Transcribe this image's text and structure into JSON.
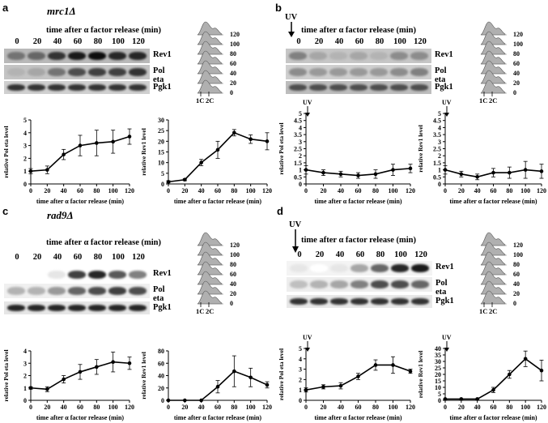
{
  "panels": {
    "a": {
      "letter": "a",
      "title": "mrc1Δ",
      "header": "time after α factor release (min)",
      "timepoints": [
        "0",
        "20",
        "40",
        "60",
        "80",
        "100",
        "120"
      ],
      "blots": [
        "Rev1",
        "Pol eta",
        "Pgk1"
      ]
    },
    "b": {
      "letter": "b",
      "uv": "UV",
      "header": "time after α factor release (min)",
      "timepoints": [
        "0",
        "20",
        "40",
        "60",
        "80",
        "100",
        "120"
      ],
      "blots": [
        "Rev1",
        "Pol eta",
        "Pgk1"
      ]
    },
    "c": {
      "letter": "c",
      "title": "rad9Δ",
      "header": "time after α factor release (min)",
      "timepoints": [
        "0",
        "20",
        "40",
        "60",
        "80",
        "100",
        "120"
      ],
      "blots": [
        "Rev1",
        "Pol eta",
        "Pgk1"
      ]
    },
    "d": {
      "letter": "d",
      "uv": "UV",
      "header": "time after α factor release (min)",
      "timepoints": [
        "0",
        "20",
        "40",
        "60",
        "80",
        "100",
        "120"
      ],
      "blots": [
        "Rev1",
        "Pol eta",
        "Pgk1"
      ]
    }
  },
  "flow": {
    "times": [
      "120",
      "100",
      "80",
      "60",
      "40",
      "20",
      "0"
    ],
    "c1": "1C",
    "c2": "2C"
  },
  "uv_label": "UV",
  "chart_data": [
    {
      "id": "a-poleta",
      "type": "line",
      "x": [
        0,
        20,
        40,
        60,
        80,
        100,
        120
      ],
      "values": [
        1,
        1.1,
        2.3,
        3,
        3.2,
        3.3,
        3.7
      ],
      "err": [
        0.2,
        0.3,
        0.4,
        0.8,
        1.0,
        0.9,
        0.6
      ],
      "xlim": [
        0,
        120
      ],
      "ylim": [
        0,
        5
      ],
      "xticks": [
        0,
        20,
        40,
        60,
        80,
        100,
        120
      ],
      "yticks": [
        0,
        1,
        2,
        3,
        4,
        5
      ],
      "xlabel": "time after α factor release (min)",
      "ylabel": "relative Pol eta level",
      "uv": false
    },
    {
      "id": "a-rev1",
      "type": "line",
      "x": [
        0,
        20,
        40,
        60,
        80,
        100,
        120
      ],
      "values": [
        1,
        2,
        10,
        16,
        24,
        21,
        20
      ],
      "err": [
        0.5,
        0.5,
        1.5,
        4,
        1.5,
        2,
        4
      ],
      "xlim": [
        0,
        120
      ],
      "ylim": [
        0,
        30
      ],
      "xticks": [
        0,
        20,
        40,
        60,
        80,
        100,
        120
      ],
      "yticks": [
        0,
        5,
        10,
        15,
        20,
        25,
        30
      ],
      "xlabel": "time after α factor release (min)",
      "ylabel": "relative Rev1 level",
      "uv": false
    },
    {
      "id": "b-poleta",
      "type": "line",
      "x": [
        0,
        20,
        40,
        60,
        80,
        100,
        120
      ],
      "values": [
        1,
        0.8,
        0.7,
        0.6,
        0.7,
        1,
        1.1
      ],
      "err": [
        0.3,
        0.2,
        0.2,
        0.2,
        0.3,
        0.4,
        0.3
      ],
      "xlim": [
        0,
        120
      ],
      "ylim": [
        0,
        5
      ],
      "xticks": [
        0,
        20,
        40,
        60,
        80,
        100,
        120
      ],
      "yticks": [
        0,
        0.5,
        1,
        1.5,
        2,
        2.5,
        3,
        3.5,
        4,
        4.5,
        5
      ],
      "xlabel": "time after α factor release (min)",
      "ylabel": "relative Pol eta level",
      "uv": true
    },
    {
      "id": "b-rev1",
      "type": "line",
      "x": [
        0,
        20,
        40,
        60,
        80,
        100,
        120
      ],
      "values": [
        1,
        0.7,
        0.5,
        0.8,
        0.8,
        1,
        0.9
      ],
      "err": [
        0.3,
        0.2,
        0.2,
        0.3,
        0.4,
        0.6,
        0.5
      ],
      "xlim": [
        0,
        120
      ],
      "ylim": [
        0,
        5
      ],
      "xticks": [
        0,
        20,
        40,
        60,
        80,
        100,
        120
      ],
      "yticks": [
        0,
        0.5,
        1,
        1.5,
        2,
        2.5,
        3,
        3.5,
        4,
        4.5,
        5
      ],
      "xlabel": "time after α factor release (min)",
      "ylabel": "relative Rev1 level",
      "uv": true
    },
    {
      "id": "c-poleta",
      "type": "line",
      "x": [
        0,
        20,
        40,
        60,
        80,
        100,
        120
      ],
      "values": [
        1,
        0.9,
        1.7,
        2.3,
        2.7,
        3.1,
        3
      ],
      "err": [
        0.1,
        0.2,
        0.3,
        0.6,
        0.6,
        0.8,
        0.5
      ],
      "xlim": [
        0,
        120
      ],
      "ylim": [
        0,
        4
      ],
      "xticks": [
        0,
        20,
        40,
        60,
        80,
        100,
        120
      ],
      "yticks": [
        0,
        1,
        2,
        3,
        4
      ],
      "xlabel": "time after α factor release (min)",
      "ylabel": "relative Pol eta level",
      "uv": false
    },
    {
      "id": "c-rev1",
      "type": "line",
      "x": [
        0,
        20,
        40,
        60,
        80,
        100,
        120
      ],
      "values": [
        0,
        0,
        0,
        22,
        47,
        37,
        25
      ],
      "err": [
        0,
        0,
        0,
        10,
        25,
        15,
        5
      ],
      "xlim": [
        0,
        120
      ],
      "ylim": [
        0,
        80
      ],
      "xticks": [
        0,
        20,
        40,
        60,
        80,
        100,
        120
      ],
      "yticks": [
        0,
        20,
        40,
        60,
        80
      ],
      "xlabel": "time after α factor release (min)",
      "ylabel": "relative Rev1 level",
      "uv": false
    },
    {
      "id": "d-poleta",
      "type": "line",
      "x": [
        0,
        20,
        40,
        60,
        80,
        100,
        120
      ],
      "values": [
        1,
        1.3,
        1.4,
        2.3,
        3.4,
        3.4,
        2.8
      ],
      "err": [
        0.2,
        0.2,
        0.3,
        0.3,
        0.5,
        0.8,
        0.2
      ],
      "xlim": [
        0,
        120
      ],
      "ylim": [
        0,
        5
      ],
      "xticks": [
        0,
        20,
        40,
        60,
        80,
        100,
        120
      ],
      "yticks": [
        0,
        1,
        2,
        3,
        4,
        5
      ],
      "xlabel": "time after α factor release (min)",
      "ylabel": "relative Pol eta level",
      "uv": true
    },
    {
      "id": "d-rev1",
      "type": "line",
      "x": [
        0,
        20,
        40,
        60,
        80,
        100,
        120
      ],
      "values": [
        1,
        1,
        1,
        8,
        20,
        32,
        23
      ],
      "err": [
        0.3,
        0.3,
        0.3,
        2,
        3,
        6,
        8
      ],
      "xlim": [
        0,
        120
      ],
      "ylim": [
        0,
        40
      ],
      "xticks": [
        0,
        20,
        40,
        60,
        80,
        100,
        120
      ],
      "yticks": [
        0,
        5,
        10,
        15,
        20,
        25,
        30,
        35,
        40
      ],
      "xlabel": "time after α factor release (min)",
      "ylabel": "relative Rev1 level",
      "uv": true
    }
  ],
  "band_intensity": {
    "a": {
      "Rev1": [
        0.55,
        0.6,
        0.8,
        0.9,
        0.95,
        0.85,
        0.85
      ],
      "Pol eta": [
        0.3,
        0.35,
        0.55,
        0.7,
        0.75,
        0.75,
        0.8
      ],
      "Pgk1": [
        0.8,
        0.8,
        0.8,
        0.8,
        0.8,
        0.8,
        0.8
      ]
    },
    "b": {
      "Rev1": [
        0.5,
        0.35,
        0.3,
        0.35,
        0.3,
        0.45,
        0.45
      ],
      "Pol eta": [
        0.45,
        0.4,
        0.4,
        0.4,
        0.4,
        0.45,
        0.5
      ],
      "Pgk1": [
        0.7,
        0.7,
        0.7,
        0.7,
        0.7,
        0.7,
        0.7
      ]
    },
    "c": {
      "Rev1": [
        0,
        0,
        0.1,
        0.75,
        0.85,
        0.65,
        0.5
      ],
      "Pol eta": [
        0.3,
        0.3,
        0.4,
        0.6,
        0.7,
        0.75,
        0.7
      ],
      "Pgk1": [
        0.85,
        0.85,
        0.85,
        0.85,
        0.85,
        0.85,
        0.85
      ]
    },
    "d": {
      "Rev1": [
        0.1,
        0,
        0.1,
        0.35,
        0.6,
        0.85,
        0.9
      ],
      "Pol eta": [
        0.25,
        0.3,
        0.35,
        0.5,
        0.7,
        0.7,
        0.6
      ],
      "Pgk1": [
        0.8,
        0.8,
        0.8,
        0.8,
        0.8,
        0.8,
        0.8
      ]
    }
  }
}
